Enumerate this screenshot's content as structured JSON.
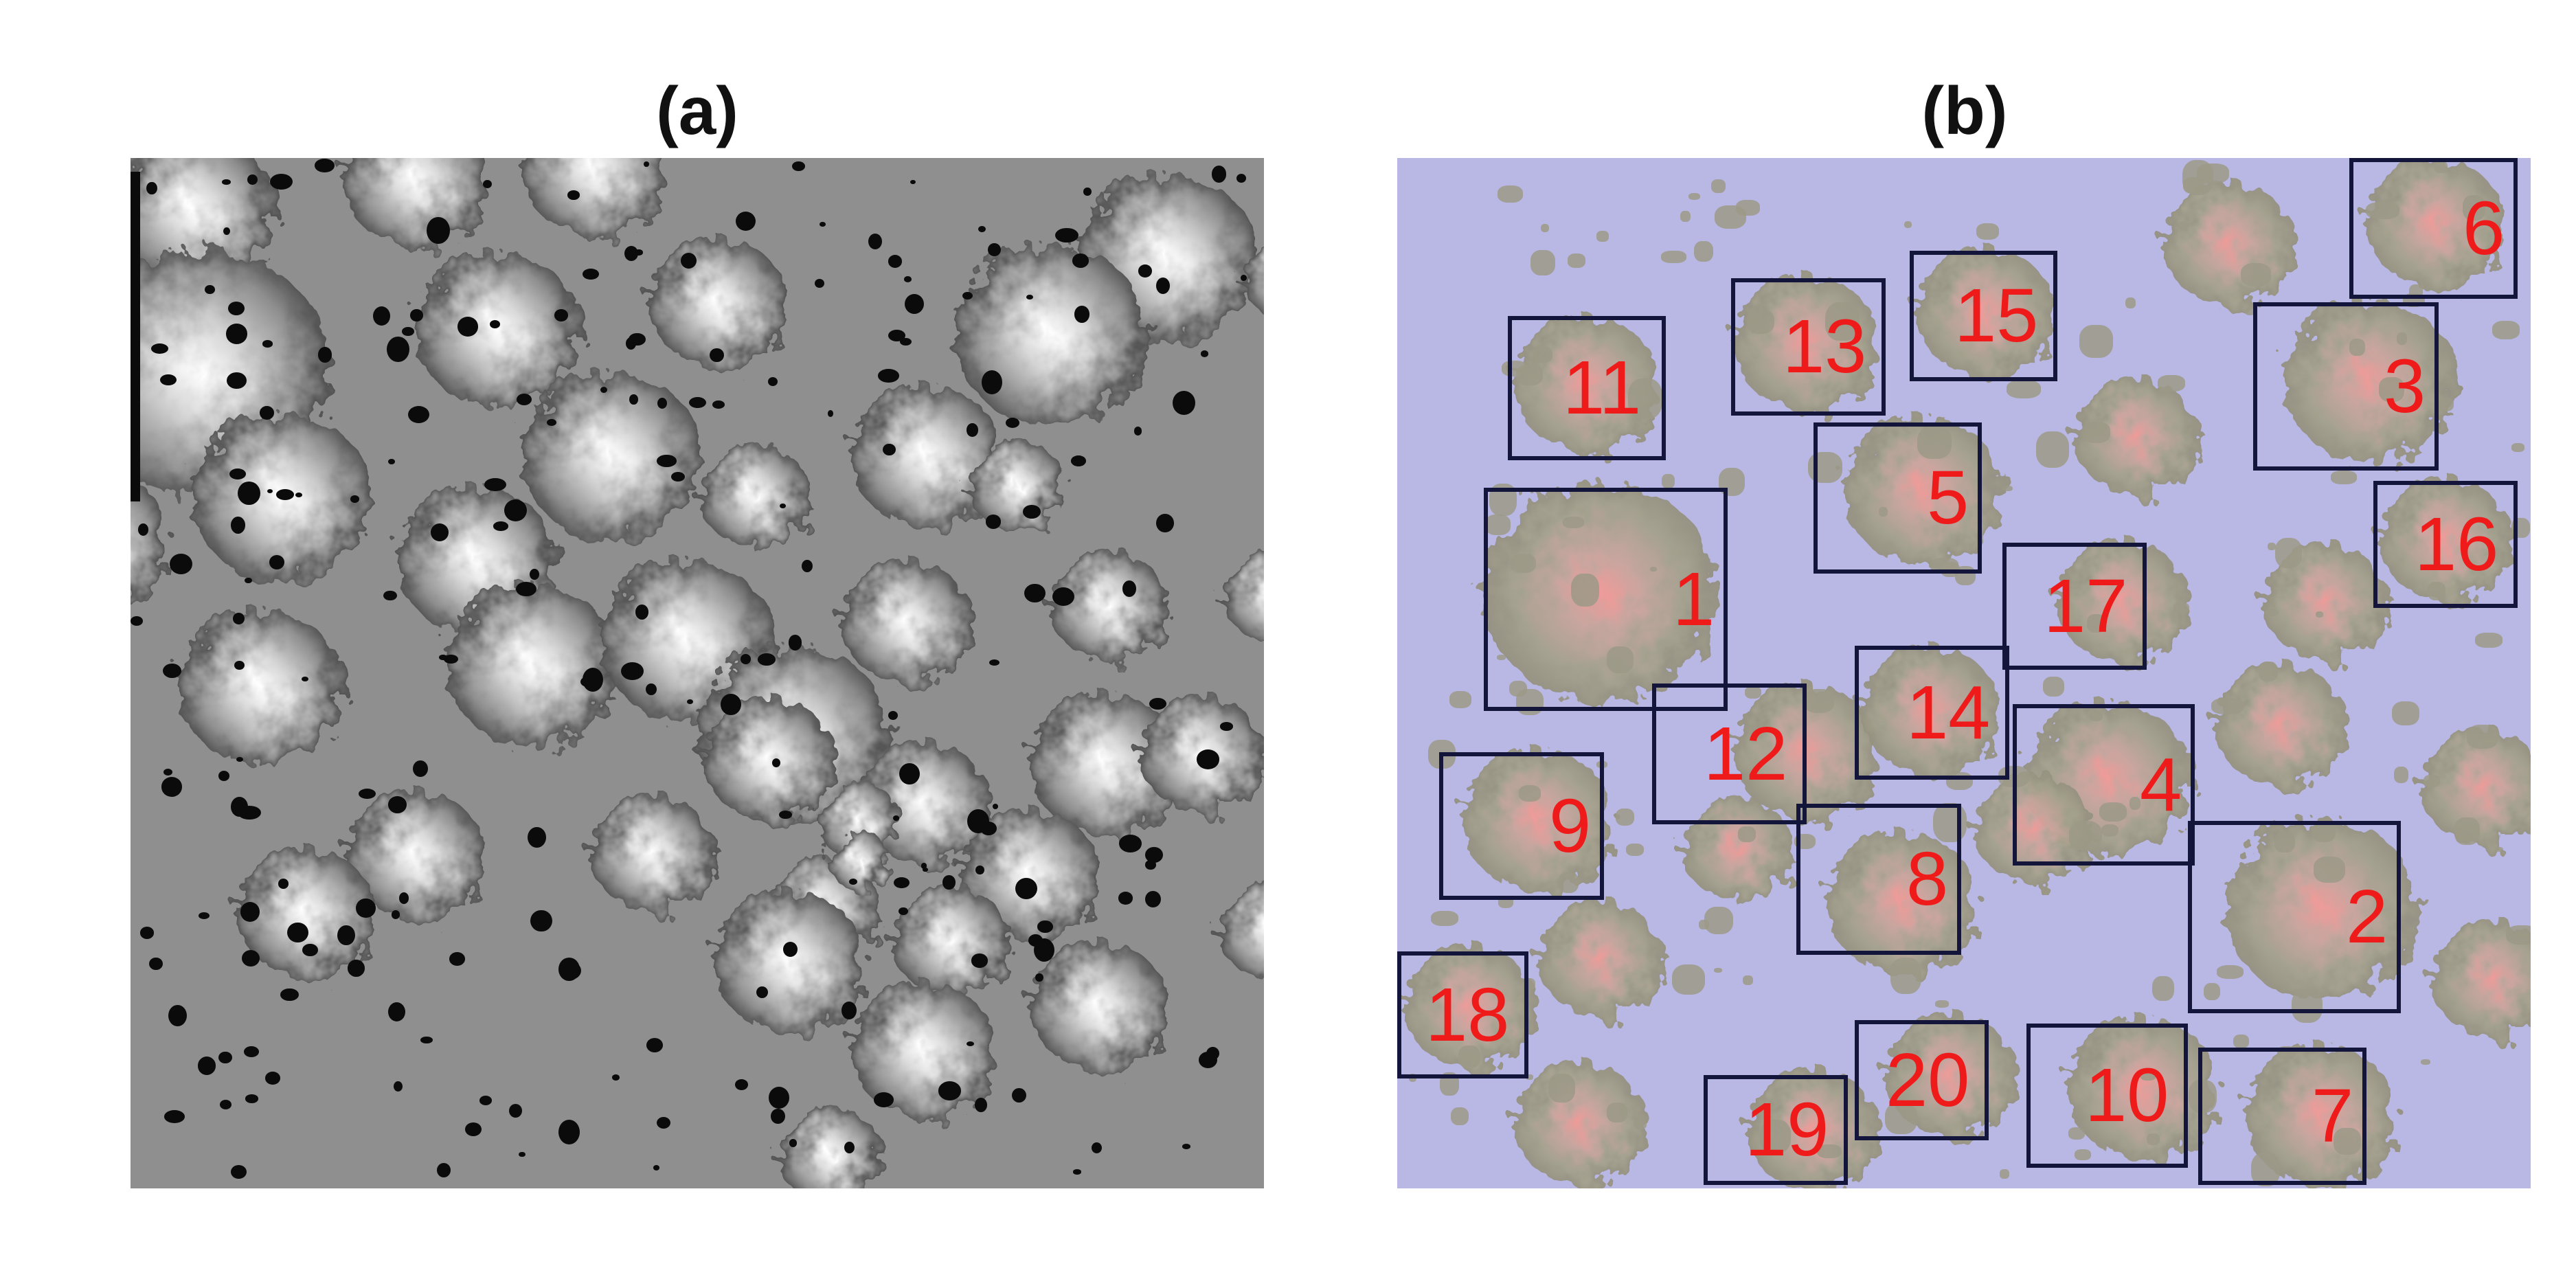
{
  "panels": {
    "left": {
      "label": "(a)"
    },
    "right": {
      "label": "(b)"
    }
  },
  "regions": [
    {
      "id": "1"
    },
    {
      "id": "2"
    },
    {
      "id": "3"
    },
    {
      "id": "4"
    },
    {
      "id": "5"
    },
    {
      "id": "6"
    },
    {
      "id": "7"
    },
    {
      "id": "8"
    },
    {
      "id": "9"
    },
    {
      "id": "10"
    },
    {
      "id": "11"
    },
    {
      "id": "12"
    },
    {
      "id": "13"
    },
    {
      "id": "14"
    },
    {
      "id": "15"
    },
    {
      "id": "16"
    },
    {
      "id": "17"
    },
    {
      "id": "18"
    },
    {
      "id": "19"
    },
    {
      "id": "20"
    }
  ],
  "colors": {
    "box_border": "#14153a",
    "label_red": "#ef1b1b",
    "background_b": "#b9b8e4",
    "background_a": "#8f8f8f"
  }
}
